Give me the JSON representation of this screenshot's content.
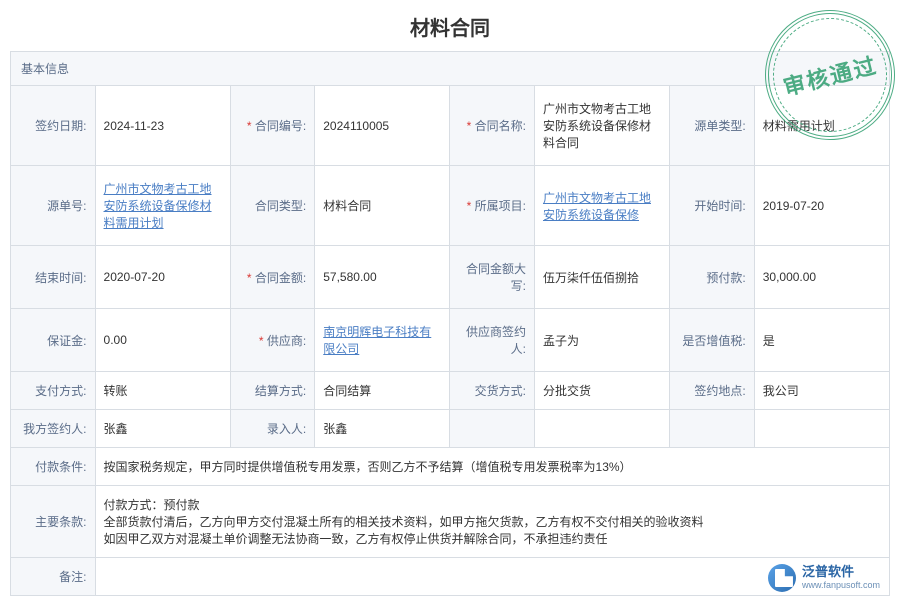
{
  "title": "材料合同",
  "section_title": "基本信息",
  "stamp_text": "审核通过",
  "logo": {
    "cn": "泛普软件",
    "en": "www.fanpusoft.com"
  },
  "rows": [
    [
      {
        "label": "签约日期:",
        "value": "2024-11-23"
      },
      {
        "label": "合同编号:",
        "value": "2024110005",
        "required": true
      },
      {
        "label": "合同名称:",
        "value": "广州市文物考古工地安防系统设备保修材料合同",
        "required": true
      },
      {
        "label": "源单类型:",
        "value": "材料需用计划"
      }
    ],
    [
      {
        "label": "源单号:",
        "value": "广州市文物考古工地安防系统设备保修材料需用计划",
        "link": true
      },
      {
        "label": "合同类型:",
        "value": "材料合同"
      },
      {
        "label": "所属项目:",
        "value": "广州市文物考古工地安防系统设备保修",
        "required": true,
        "link": true
      },
      {
        "label": "开始时间:",
        "value": "2019-07-20"
      }
    ],
    [
      {
        "label": "结束时间:",
        "value": "2020-07-20"
      },
      {
        "label": "合同金额:",
        "value": "57,580.00",
        "required": true
      },
      {
        "label": "合同金额大写:",
        "value": "伍万柒仟伍佰捌拾"
      },
      {
        "label": "预付款:",
        "value": "30,000.00"
      }
    ],
    [
      {
        "label": "保证金:",
        "value": "0.00"
      },
      {
        "label": "供应商:",
        "value": "南京明辉电子科技有限公司",
        "required": true,
        "link": true
      },
      {
        "label": "供应商签约人:",
        "value": "孟子为"
      },
      {
        "label": "是否增值税:",
        "value": "是"
      }
    ],
    [
      {
        "label": "支付方式:",
        "value": "转账"
      },
      {
        "label": "结算方式:",
        "value": "合同结算"
      },
      {
        "label": "交货方式:",
        "value": "分批交货"
      },
      {
        "label": "签约地点:",
        "value": "我公司"
      }
    ],
    [
      {
        "label": "我方签约人:",
        "value": "张鑫"
      },
      {
        "label": "录入人:",
        "value": "张鑫"
      }
    ]
  ],
  "long_rows": [
    {
      "label": "付款条件:",
      "value": "按国家税务规定，甲方同时提供增值税专用发票，否则乙方不予结算（增值税专用发票税率为13%）"
    },
    {
      "label": "主要条款:",
      "value": "付款方式：预付款\n全部货款付清后，乙方向甲方交付混凝土所有的相关技术资料，如甲方拖欠货款，乙方有权不交付相关的验收资料\n如因甲乙双方对混凝土单价调整无法协商一致，乙方有权停止供货并解除合同，不承担违约责任"
    },
    {
      "label": "备注:",
      "value": ""
    }
  ]
}
